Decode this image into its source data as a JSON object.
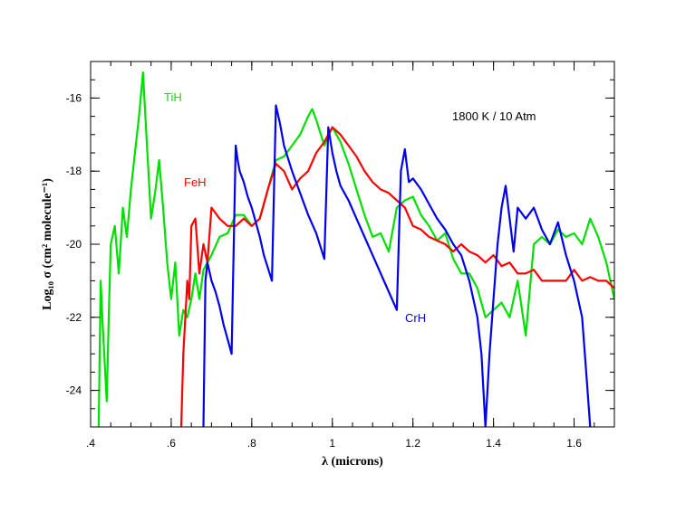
{
  "chart_data": {
    "type": "line",
    "title": "",
    "annotation": "1800 K / 10 Atm",
    "xlabel": "λ (microns)",
    "ylabel": "Log₁₀ σ (cm² molecule⁻¹)",
    "xlim": [
      0.4,
      1.7
    ],
    "ylim": [
      -25,
      -15
    ],
    "x_ticks": [
      0.4,
      0.6,
      0.8,
      1.0,
      1.2,
      1.4,
      1.6
    ],
    "x_tick_labels": [
      ".4",
      ".6",
      ".8",
      "1",
      "1.2",
      "1.4",
      "1.6"
    ],
    "y_ticks": [
      -24,
      -22,
      -20,
      -18,
      -16
    ],
    "y_tick_labels": [
      "-24",
      "-22",
      "-20",
      "-18",
      "-16"
    ],
    "series": [
      {
        "name": "TiH",
        "color": "#00e000",
        "x": [
          0.42,
          0.425,
          0.43,
          0.44,
          0.445,
          0.45,
          0.46,
          0.47,
          0.48,
          0.49,
          0.5,
          0.51,
          0.52,
          0.53,
          0.54,
          0.55,
          0.56,
          0.57,
          0.58,
          0.59,
          0.6,
          0.61,
          0.62,
          0.63,
          0.64,
          0.65,
          0.66,
          0.67,
          0.68,
          0.7,
          0.72,
          0.74,
          0.76,
          0.78,
          0.8,
          0.82,
          0.84,
          0.86,
          0.88,
          0.9,
          0.92,
          0.94,
          0.95,
          0.96,
          0.98,
          1.0,
          1.02,
          1.04,
          1.06,
          1.08,
          1.1,
          1.12,
          1.14,
          1.16,
          1.18,
          1.2,
          1.22,
          1.24,
          1.26,
          1.28,
          1.3,
          1.32,
          1.34,
          1.36,
          1.38,
          1.4,
          1.42,
          1.44,
          1.46,
          1.48,
          1.5,
          1.52,
          1.54,
          1.56,
          1.58,
          1.6,
          1.62,
          1.64,
          1.66,
          1.68,
          1.7
        ],
        "values": [
          -25.0,
          -21.0,
          -22.2,
          -24.3,
          -22.0,
          -20.0,
          -19.5,
          -20.8,
          -19.0,
          -19.8,
          -18.5,
          -17.5,
          -16.5,
          -15.3,
          -17.3,
          -19.3,
          -18.6,
          -17.7,
          -19.0,
          -20.5,
          -21.5,
          -20.5,
          -22.5,
          -21.8,
          -22.0,
          -21.5,
          -20.8,
          -21.5,
          -20.7,
          -20.3,
          -19.8,
          -19.7,
          -19.2,
          -19.2,
          -19.5,
          -19.3,
          -18.5,
          -17.7,
          -17.6,
          -17.3,
          -17.0,
          -16.5,
          -16.3,
          -16.6,
          -17.3,
          -16.8,
          -17.2,
          -17.8,
          -18.5,
          -19.2,
          -19.8,
          -19.7,
          -20.2,
          -19.0,
          -18.8,
          -18.7,
          -19.2,
          -19.5,
          -19.9,
          -19.7,
          -20.4,
          -20.8,
          -20.8,
          -21.2,
          -22.0,
          -21.8,
          -21.6,
          -22.0,
          -21.0,
          -22.5,
          -20.0,
          -19.8,
          -20.0,
          -19.6,
          -19.8,
          -19.7,
          -20.0,
          -19.3,
          -19.8,
          -20.5,
          -21.5
        ]
      },
      {
        "name": "FeH",
        "color": "#ff0000",
        "x": [
          0.625,
          0.63,
          0.635,
          0.64,
          0.645,
          0.65,
          0.66,
          0.67,
          0.68,
          0.69,
          0.7,
          0.72,
          0.74,
          0.76,
          0.78,
          0.8,
          0.82,
          0.84,
          0.86,
          0.88,
          0.9,
          0.92,
          0.94,
          0.96,
          0.98,
          1.0,
          1.02,
          1.04,
          1.06,
          1.08,
          1.1,
          1.12,
          1.14,
          1.16,
          1.18,
          1.2,
          1.22,
          1.24,
          1.26,
          1.28,
          1.3,
          1.32,
          1.34,
          1.36,
          1.38,
          1.4,
          1.42,
          1.44,
          1.46,
          1.48,
          1.5,
          1.52,
          1.54,
          1.56,
          1.58,
          1.6,
          1.62,
          1.64,
          1.66,
          1.68,
          1.7
        ],
        "values": [
          -25.0,
          -23.0,
          -22.0,
          -21.0,
          -21.5,
          -19.5,
          -19.3,
          -20.8,
          -20.0,
          -20.5,
          -19.0,
          -19.3,
          -19.5,
          -19.5,
          -19.3,
          -19.5,
          -19.3,
          -18.5,
          -17.8,
          -18.0,
          -18.5,
          -18.2,
          -18.0,
          -17.5,
          -17.2,
          -16.8,
          -17.0,
          -17.3,
          -17.6,
          -18.0,
          -18.3,
          -18.5,
          -18.6,
          -18.8,
          -19.0,
          -19.5,
          -19.6,
          -19.8,
          -19.9,
          -20.0,
          -20.2,
          -20.0,
          -20.2,
          -20.3,
          -20.5,
          -20.3,
          -20.6,
          -20.5,
          -20.8,
          -20.8,
          -20.7,
          -21.0,
          -21.0,
          -21.0,
          -21.0,
          -20.7,
          -21.0,
          -20.9,
          -21.0,
          -21.0,
          -21.2
        ]
      },
      {
        "name": "CrH",
        "color": "#0000ee",
        "x": [
          0.68,
          0.685,
          0.69,
          0.7,
          0.71,
          0.72,
          0.73,
          0.74,
          0.75,
          0.76,
          0.765,
          0.77,
          0.78,
          0.79,
          0.8,
          0.81,
          0.82,
          0.83,
          0.85,
          0.86,
          0.87,
          0.88,
          0.9,
          0.92,
          0.94,
          0.96,
          0.98,
          0.99,
          1.0,
          1.01,
          1.02,
          1.04,
          1.06,
          1.08,
          1.1,
          1.12,
          1.14,
          1.16,
          1.17,
          1.18,
          1.19,
          1.2,
          1.22,
          1.24,
          1.26,
          1.28,
          1.3,
          1.32,
          1.34,
          1.36,
          1.37,
          1.38,
          1.39,
          1.4,
          1.41,
          1.42,
          1.43,
          1.44,
          1.45,
          1.46,
          1.48,
          1.5,
          1.52,
          1.54,
          1.56,
          1.58,
          1.6,
          1.62,
          1.63,
          1.64
        ],
        "values": [
          -25.0,
          -21.0,
          -20.5,
          -21.0,
          -21.3,
          -21.7,
          -22.2,
          -22.6,
          -23.0,
          -17.3,
          -17.7,
          -18.0,
          -18.3,
          -18.7,
          -19.0,
          -19.4,
          -19.8,
          -20.3,
          -21.0,
          -16.2,
          -16.7,
          -17.3,
          -18.0,
          -18.6,
          -19.2,
          -19.7,
          -20.4,
          -16.8,
          -17.5,
          -18.0,
          -18.4,
          -18.8,
          -19.3,
          -19.8,
          -20.3,
          -20.8,
          -21.3,
          -21.8,
          -18.0,
          -17.4,
          -18.3,
          -18.2,
          -18.5,
          -18.9,
          -19.3,
          -19.6,
          -20.0,
          -20.3,
          -21.0,
          -22.0,
          -23.0,
          -25.0,
          -23.0,
          -21.5,
          -20.0,
          -19.0,
          -18.4,
          -19.3,
          -20.2,
          -19.0,
          -19.3,
          -19.0,
          -19.6,
          -20.0,
          -19.4,
          -20.3,
          -21.0,
          -22.0,
          -23.5,
          -25.0
        ]
      }
    ]
  }
}
